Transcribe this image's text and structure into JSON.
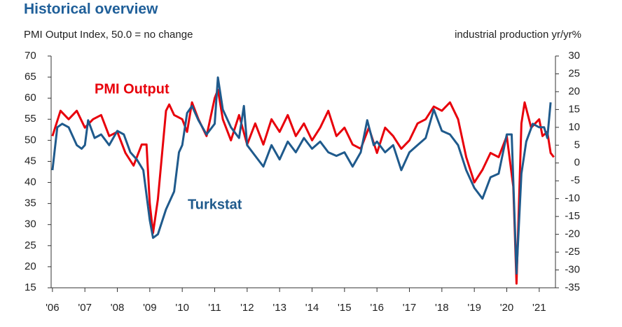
{
  "chart_data": {
    "type": "line",
    "title": "Historical overview",
    "subtitle": "PMI Output Index, 50.0 = no change",
    "y2_label": "industrial production yr/yr%",
    "xlim": [
      2005.96,
      2021.5
    ],
    "xticks": [
      {
        "value": 2006,
        "label": "'06"
      },
      {
        "value": 2007,
        "label": "'07"
      },
      {
        "value": 2008,
        "label": "'08"
      },
      {
        "value": 2009,
        "label": "'09"
      },
      {
        "value": 2010,
        "label": "'10"
      },
      {
        "value": 2011,
        "label": "'11"
      },
      {
        "value": 2012,
        "label": "'12"
      },
      {
        "value": 2013,
        "label": "'13"
      },
      {
        "value": 2014,
        "label": "'14"
      },
      {
        "value": 2015,
        "label": "'15"
      },
      {
        "value": 2016,
        "label": "'16"
      },
      {
        "value": 2017,
        "label": "'17"
      },
      {
        "value": 2018,
        "label": "'18"
      },
      {
        "value": 2019,
        "label": "'19"
      },
      {
        "value": 2020,
        "label": "'20"
      },
      {
        "value": 2021,
        "label": "'21"
      }
    ],
    "ylim": [
      15,
      70
    ],
    "yticks": [
      15,
      20,
      25,
      30,
      35,
      40,
      45,
      50,
      55,
      60,
      65,
      70
    ],
    "y2lim": [
      -35,
      30
    ],
    "y2ticks": [
      -35,
      -30,
      -25,
      -20,
      -15,
      -10,
      -5,
      0,
      5,
      10,
      15,
      20,
      25,
      30
    ],
    "series": [
      {
        "name": "PMI Output",
        "color": "#e8000b",
        "axis": "y",
        "x": [
          2006.0,
          2006.25,
          2006.5,
          2006.75,
          2007.0,
          2007.25,
          2007.5,
          2007.75,
          2008.0,
          2008.25,
          2008.5,
          2008.75,
          2008.9,
          2009.0,
          2009.1,
          2009.25,
          2009.5,
          2009.6,
          2009.75,
          2010.0,
          2010.15,
          2010.3,
          2010.5,
          2010.75,
          2011.0,
          2011.1,
          2011.25,
          2011.5,
          2011.75,
          2012.0,
          2012.25,
          2012.5,
          2012.75,
          2013.0,
          2013.25,
          2013.5,
          2013.75,
          2014.0,
          2014.25,
          2014.5,
          2014.75,
          2015.0,
          2015.25,
          2015.5,
          2015.75,
          2016.0,
          2016.25,
          2016.5,
          2016.75,
          2017.0,
          2017.25,
          2017.5,
          2017.75,
          2018.0,
          2018.25,
          2018.5,
          2018.75,
          2019.0,
          2019.25,
          2019.5,
          2019.75,
          2020.0,
          2020.2,
          2020.3,
          2020.45,
          2020.55,
          2020.75,
          2021.0,
          2021.1,
          2021.25,
          2021.35,
          2021.45
        ],
        "values": [
          51,
          57,
          55,
          57,
          53,
          55,
          56,
          51,
          52,
          47,
          44,
          49,
          49,
          35,
          28,
          36,
          57,
          58.5,
          56,
          55,
          52,
          59,
          55,
          51,
          60,
          62,
          55,
          50,
          56,
          49,
          54,
          49,
          55,
          52,
          56,
          51,
          54,
          50,
          53,
          57,
          51,
          53,
          49,
          48,
          53,
          47,
          53,
          51,
          48,
          50,
          54,
          55,
          58,
          57,
          59,
          55,
          46,
          40,
          43,
          47,
          46,
          51,
          39,
          16,
          54,
          59,
          53,
          55,
          51,
          52,
          47,
          46
        ]
      },
      {
        "name": "Turkstat",
        "color": "#1f5a8c",
        "axis": "y2",
        "x": [
          2006.0,
          2006.15,
          2006.3,
          2006.5,
          2006.75,
          2006.9,
          2007.0,
          2007.1,
          2007.3,
          2007.5,
          2007.75,
          2008.0,
          2008.2,
          2008.4,
          2008.6,
          2008.8,
          2009.0,
          2009.1,
          2009.25,
          2009.5,
          2009.75,
          2009.9,
          2010.0,
          2010.15,
          2010.3,
          2010.5,
          2010.75,
          2011.0,
          2011.1,
          2011.25,
          2011.5,
          2011.75,
          2011.9,
          2012.0,
          2012.25,
          2012.5,
          2012.75,
          2013.0,
          2013.25,
          2013.5,
          2013.75,
          2014.0,
          2014.25,
          2014.5,
          2014.75,
          2015.0,
          2015.25,
          2015.5,
          2015.7,
          2015.9,
          2016.0,
          2016.25,
          2016.5,
          2016.75,
          2017.0,
          2017.25,
          2017.5,
          2017.75,
          2018.0,
          2018.25,
          2018.5,
          2018.75,
          2019.0,
          2019.25,
          2019.5,
          2019.75,
          2020.0,
          2020.15,
          2020.3,
          2020.45,
          2020.6,
          2020.8,
          2021.0,
          2021.15,
          2021.25,
          2021.35
        ],
        "values": [
          -2,
          10,
          11,
          10,
          5,
          4,
          5,
          12,
          7,
          8,
          5,
          9,
          8,
          3,
          1,
          -2,
          -16,
          -21,
          -20,
          -13,
          -8,
          3,
          5,
          14,
          16,
          12,
          8,
          11,
          24,
          15,
          10,
          7,
          16,
          5,
          2,
          -1,
          5,
          1,
          6,
          3,
          7,
          4,
          6,
          3,
          2,
          3,
          -1,
          3,
          12,
          5,
          6,
          3,
          5,
          -2,
          3,
          5,
          7,
          15,
          9,
          8,
          5,
          -2,
          -7,
          -10,
          -4,
          -3,
          8,
          8,
          -31,
          -3,
          6,
          11,
          10,
          10,
          7,
          17
        ]
      }
    ]
  }
}
